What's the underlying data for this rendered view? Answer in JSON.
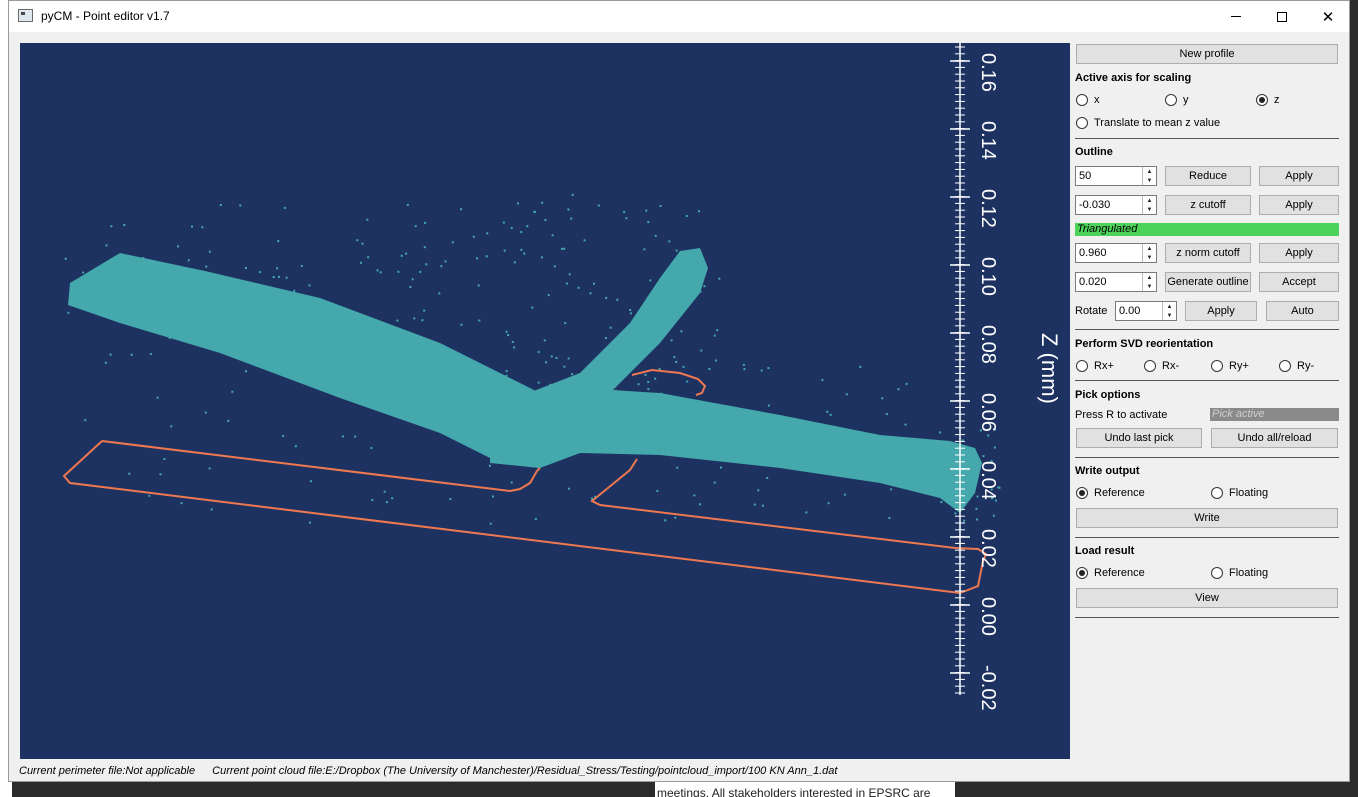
{
  "window": {
    "title": "pyCM - Point editor v1.7"
  },
  "plot": {
    "axis_label": "Z (mm)",
    "ticks": [
      "0.16",
      "0.14",
      "0.12",
      "0.10",
      "0.08",
      "0.06",
      "0.04",
      "0.02",
      "0.00",
      "-0.02"
    ],
    "colors": {
      "background": "#1d3260",
      "points": "#44a8ac",
      "outline": "#f07850",
      "axis": "#ffffff"
    }
  },
  "status": {
    "perimeter": "Current perimeter file:Not applicable",
    "pointcloud": "Current point cloud file:E:/Dropbox (The University of Manchester)/Residual_Stress/Testing/pointcloud_import/100 KN Ann_1.dat"
  },
  "panel": {
    "new_profile": "New profile",
    "scaling": {
      "title": "Active axis for scaling",
      "options": [
        "x",
        "y",
        "z"
      ],
      "selected": "z",
      "translate_label": "Translate to mean z value"
    },
    "outline": {
      "title": "Outline",
      "reduce_value": "50",
      "reduce_label": "Reduce",
      "zcut_value": "-0.030",
      "zcut_label": "z cutoff",
      "apply_label": "Apply",
      "triangulated": "Triangulated",
      "znorm_value": "0.960",
      "znorm_label": "z norm cutoff",
      "gen_value": "0.020",
      "gen_label": "Generate outline",
      "accept_label": "Accept",
      "rotate_label": "Rotate",
      "rotate_value": "0.00",
      "auto_label": "Auto"
    },
    "svd": {
      "title": "Perform SVD reorientation",
      "options": [
        "Rx+",
        "Rx-",
        "Ry+",
        "Ry-"
      ]
    },
    "pick": {
      "title": "Pick options",
      "hint": "Press R to activate",
      "badge": "Pick active",
      "undo_last": "Undo last pick",
      "undo_all": "Undo all/reload"
    },
    "write": {
      "title": "Write output",
      "options": [
        "Reference",
        "Floating"
      ],
      "selected": "Reference",
      "button": "Write"
    },
    "load": {
      "title": "Load result",
      "options": [
        "Reference",
        "Floating"
      ],
      "selected": "Reference",
      "button": "View"
    }
  },
  "background": {
    "bottom_text": "meetings. All stakeholders interested in EPSRC are"
  }
}
